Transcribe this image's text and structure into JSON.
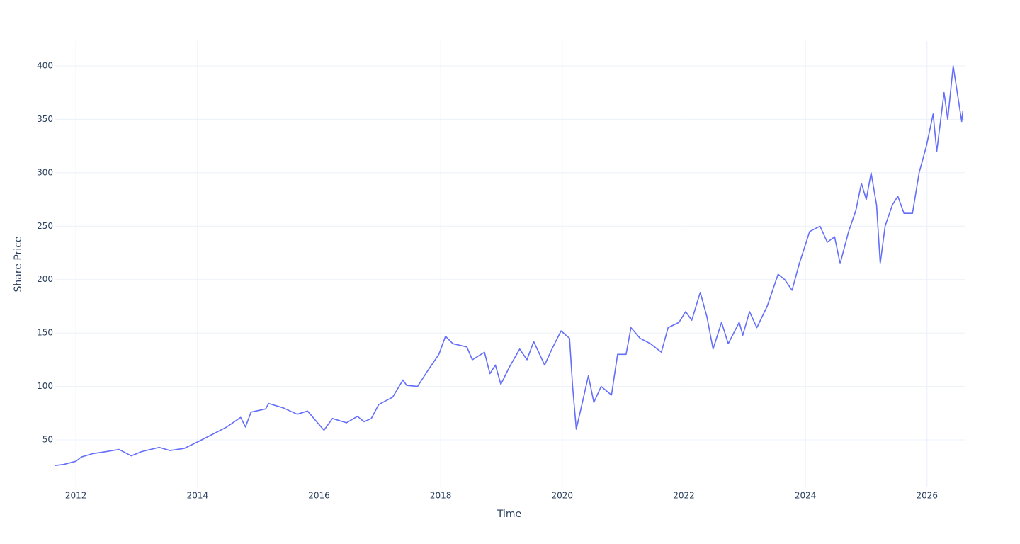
{
  "chart_data": {
    "type": "line",
    "xlabel": "Time",
    "ylabel": "Share Price",
    "x": [
      2011.66,
      2011.8,
      2012.0,
      2012.09,
      2012.27,
      2012.5,
      2012.71,
      2012.91,
      2013.08,
      2013.37,
      2013.55,
      2013.78,
      2014.0,
      2014.24,
      2014.48,
      2014.71,
      2014.79,
      2014.88,
      2015.12,
      2015.17,
      2015.41,
      2015.64,
      2015.81,
      2015.99,
      2016.08,
      2016.22,
      2016.45,
      2016.63,
      2016.74,
      2016.86,
      2016.98,
      2017.21,
      2017.38,
      2017.44,
      2017.62,
      2017.79,
      2017.97,
      2018.08,
      2018.2,
      2018.43,
      2018.52,
      2018.72,
      2018.81,
      2018.9,
      2018.99,
      2019.13,
      2019.3,
      2019.42,
      2019.53,
      2019.71,
      2019.83,
      2019.98,
      2020.12,
      2020.17,
      2020.23,
      2020.35,
      2020.43,
      2020.52,
      2020.64,
      2020.81,
      2020.91,
      2021.05,
      2021.13,
      2021.28,
      2021.45,
      2021.63,
      2021.74,
      2021.92,
      2022.03,
      2022.13,
      2022.27,
      2022.38,
      2022.48,
      2022.62,
      2022.73,
      2022.91,
      2022.97,
      2023.08,
      2023.2,
      2023.37,
      2023.55,
      2023.66,
      2023.78,
      2023.9,
      2024.07,
      2024.24,
      2024.36,
      2024.48,
      2024.57,
      2024.71,
      2024.83,
      2024.92,
      2025.0,
      2025.08,
      2025.17,
      2025.23,
      2025.31,
      2025.43,
      2025.52,
      2025.62,
      2025.76,
      2025.87,
      2025.99,
      2026.1,
      2026.16,
      2026.28,
      2026.34,
      2026.43,
      2026.51,
      2026.57,
      2026.59
    ],
    "series": [
      {
        "name": "Share Price",
        "color": "#636efa",
        "values": [
          26,
          27,
          30,
          34,
          37,
          39,
          41,
          35,
          39,
          43,
          40,
          42,
          48,
          55,
          62,
          71,
          62,
          76,
          79,
          84,
          80,
          74,
          77,
          65,
          59,
          70,
          66,
          72,
          67,
          70,
          83,
          90,
          106,
          101,
          100,
          115,
          130,
          147,
          140,
          137,
          125,
          132,
          112,
          120,
          102,
          118,
          135,
          125,
          142,
          120,
          135,
          152,
          145,
          100,
          60,
          90,
          110,
          85,
          100,
          92,
          130,
          130,
          155,
          145,
          140,
          132,
          155,
          160,
          170,
          162,
          188,
          165,
          135,
          160,
          140,
          160,
          148,
          170,
          155,
          175,
          205,
          200,
          190,
          215,
          245,
          250,
          235,
          240,
          215,
          245,
          265,
          290,
          275,
          300,
          270,
          215,
          250,
          270,
          278,
          262,
          262,
          300,
          325,
          355,
          320,
          375,
          350,
          400,
          370,
          348,
          358
        ]
      }
    ],
    "xlim": [
      2011.66,
      2026.62
    ],
    "xticks": [
      2012,
      2014,
      2016,
      2018,
      2020,
      2022,
      2024,
      2026
    ],
    "ylim": [
      5.6,
      423.2
    ],
    "yticks": [
      50,
      100,
      150,
      200,
      250,
      300,
      350,
      400
    ],
    "grid": true
  }
}
